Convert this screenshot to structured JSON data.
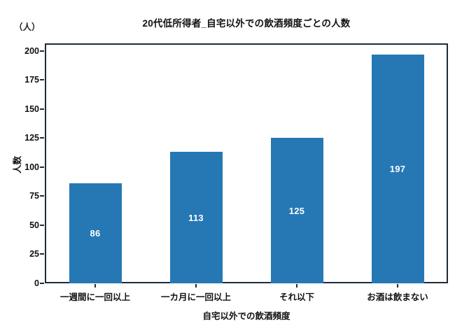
{
  "chart_data": {
    "type": "bar",
    "title": "20代低所得者_自宅以外での飲酒頻度ごとの人数",
    "unit_label": "（人）",
    "xlabel": "自宅以外での飲酒頻度",
    "ylabel": "人数",
    "categories": [
      "一週間に一回以上",
      "一カ月に一回以上",
      "それ以下",
      "お酒は飲まない"
    ],
    "values": [
      86,
      113,
      125,
      197
    ],
    "value_labels": [
      "86",
      "113",
      "125",
      "197"
    ],
    "yticks": [
      0,
      25,
      50,
      75,
      100,
      125,
      150,
      175,
      200
    ],
    "ylim": [
      0,
      206.5
    ],
    "grid": false,
    "legend": null,
    "colors": {
      "bar": "#2578b4",
      "frame": "#1e2c3c",
      "text": "#111111",
      "value_label": "#ffffff",
      "background": "#ffffff"
    }
  }
}
